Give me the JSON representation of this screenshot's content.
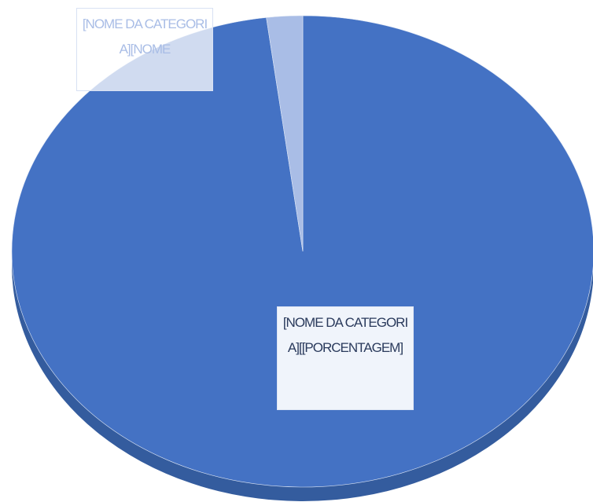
{
  "chart_data": {
    "type": "pie",
    "labels": [
      "[NOME DA CATEGORIA][[PORCENTAGEM]",
      "[NOME DA CATEGORIA][NOME"
    ],
    "values": [
      98,
      2
    ],
    "colors": [
      "#4472c4",
      "#a9bde6"
    ]
  }
}
